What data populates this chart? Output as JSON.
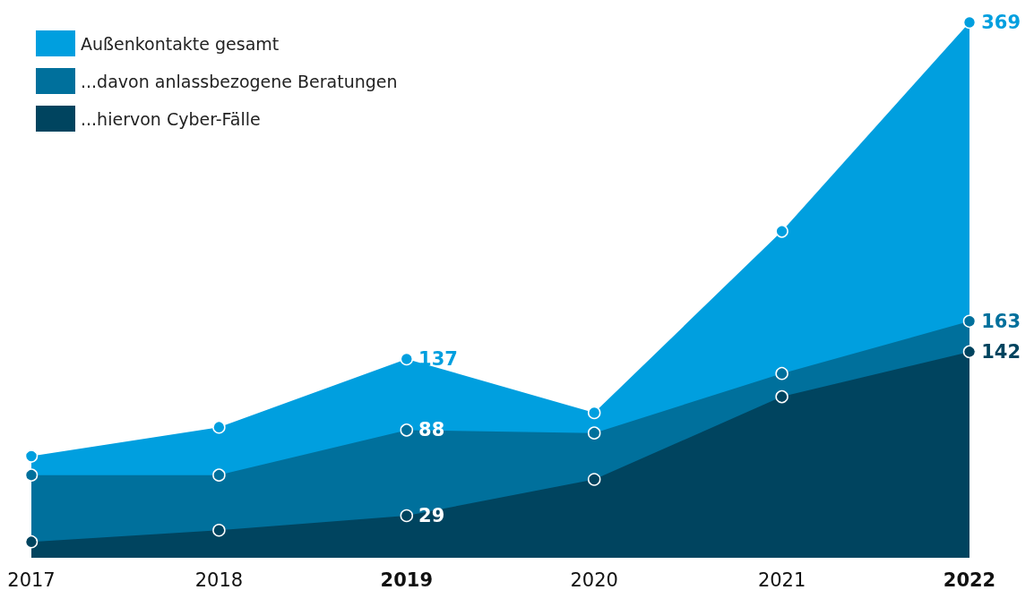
{
  "chart_data": {
    "type": "area",
    "categories": [
      "2017",
      "2018",
      "2019",
      "2020",
      "2021",
      "2022"
    ],
    "series": [
      {
        "name": "Außenkontakte gesamt",
        "color": "#009fdf",
        "values": [
          70,
          90,
          137,
          100,
          225,
          369
        ],
        "value_labels": [
          null,
          null,
          "137",
          null,
          null,
          "369"
        ]
      },
      {
        "name": "...davon anlassbezogene Beratungen",
        "color": "#00709c",
        "values": [
          57,
          57,
          88,
          86,
          127,
          163
        ],
        "value_labels": [
          null,
          null,
          "88",
          null,
          null,
          "163"
        ]
      },
      {
        "name": "...hiervon Cyber-Fälle",
        "color": "#00445f",
        "values": [
          11,
          19,
          29,
          54,
          111,
          142
        ],
        "value_labels": [
          null,
          null,
          "29",
          null,
          null,
          "142"
        ]
      }
    ],
    "legend": "top left",
    "marker": "circle"
  }
}
